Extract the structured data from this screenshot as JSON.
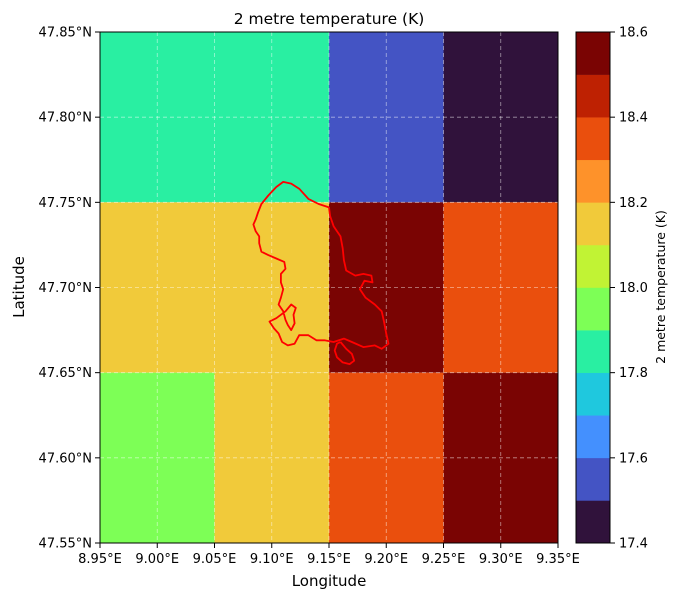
{
  "chart_data": {
    "type": "heatmap",
    "title": "2 metre temperature (K)",
    "xlabel": "Longitude",
    "ylabel": "Latitude",
    "xlim": [
      8.95,
      9.35
    ],
    "ylim": [
      47.55,
      47.85
    ],
    "x_ticks": [
      8.95,
      9.0,
      9.05,
      9.1,
      9.15,
      9.2,
      9.25,
      9.3,
      9.35
    ],
    "x_tick_labels": [
      "8.95°E",
      "9.00°E",
      "9.05°E",
      "9.10°E",
      "9.15°E",
      "9.20°E",
      "9.25°E",
      "9.30°E",
      "9.35°E"
    ],
    "y_ticks": [
      47.55,
      47.6,
      47.65,
      47.7,
      47.75,
      47.8,
      47.85
    ],
    "y_tick_labels": [
      "47.55°N",
      "47.60°N",
      "47.65°N",
      "47.70°N",
      "47.75°N",
      "47.80°N",
      "47.85°N"
    ],
    "grid": true,
    "cells": [
      {
        "lon": [
          8.95,
          9.05
        ],
        "lat": [
          47.75,
          47.85
        ],
        "value": 17.8
      },
      {
        "lon": [
          9.05,
          9.15
        ],
        "lat": [
          47.75,
          47.85
        ],
        "value": 17.8
      },
      {
        "lon": [
          9.15,
          9.25
        ],
        "lat": [
          47.75,
          47.85
        ],
        "value": 17.5
      },
      {
        "lon": [
          9.25,
          9.35
        ],
        "lat": [
          47.75,
          47.85
        ],
        "value": 17.4
      },
      {
        "lon": [
          8.95,
          9.05
        ],
        "lat": [
          47.65,
          47.75
        ],
        "value": 18.2
      },
      {
        "lon": [
          9.05,
          9.15
        ],
        "lat": [
          47.65,
          47.75
        ],
        "value": 18.2
      },
      {
        "lon": [
          9.15,
          9.25
        ],
        "lat": [
          47.65,
          47.75
        ],
        "value": 18.55
      },
      {
        "lon": [
          9.25,
          9.35
        ],
        "lat": [
          47.65,
          47.75
        ],
        "value": 18.35
      },
      {
        "lon": [
          8.95,
          9.05
        ],
        "lat": [
          47.55,
          47.65
        ],
        "value": 17.95
      },
      {
        "lon": [
          9.05,
          9.15
        ],
        "lat": [
          47.55,
          47.65
        ],
        "value": 18.2
      },
      {
        "lon": [
          9.15,
          9.25
        ],
        "lat": [
          47.55,
          47.65
        ],
        "value": 18.35
      },
      {
        "lon": [
          9.25,
          9.35
        ],
        "lat": [
          47.55,
          47.65
        ],
        "value": 18.55
      }
    ],
    "colorbar": {
      "label": "2 metre temperature (K)",
      "range": [
        17.4,
        18.6
      ],
      "ticks": [
        17.4,
        17.6,
        17.8,
        18.0,
        18.2,
        18.4,
        18.6
      ],
      "tick_labels": [
        "17.4",
        "17.6",
        "17.8",
        "18.0",
        "18.2",
        "18.4",
        "18.6"
      ],
      "colors": [
        "#30123b",
        "#4454c4",
        "#4490fe",
        "#1fc8de",
        "#29efa2",
        "#7dff56",
        "#c1f334",
        "#f1ca3a",
        "#fe922a",
        "#ea4f0d",
        "#be2102",
        "#7a0403"
      ]
    },
    "outline": {
      "color": "#ff0000",
      "points": [
        [
          9.15,
          47.747
        ],
        [
          9.141,
          47.749
        ],
        [
          9.132,
          47.752
        ],
        [
          9.124,
          47.758
        ],
        [
          9.117,
          47.761
        ],
        [
          9.11,
          47.762
        ],
        [
          9.104,
          47.759
        ],
        [
          9.097,
          47.754
        ],
        [
          9.091,
          47.749
        ],
        [
          9.088,
          47.744
        ],
        [
          9.086,
          47.74
        ],
        [
          9.084,
          47.737
        ],
        [
          9.086,
          47.733
        ],
        [
          9.089,
          47.73
        ],
        [
          9.089,
          47.726
        ],
        [
          9.091,
          47.721
        ],
        [
          9.097,
          47.719
        ],
        [
          9.104,
          47.717
        ],
        [
          9.111,
          47.715
        ],
        [
          9.112,
          47.711
        ],
        [
          9.108,
          47.708
        ],
        [
          9.108,
          47.703
        ],
        [
          9.11,
          47.699
        ],
        [
          9.108,
          47.694
        ],
        [
          9.106,
          47.69
        ],
        [
          9.11,
          47.686
        ],
        [
          9.112,
          47.681
        ],
        [
          9.114,
          47.678
        ],
        [
          9.117,
          47.675
        ],
        [
          9.12,
          47.679
        ],
        [
          9.119,
          47.684
        ],
        [
          9.121,
          47.688
        ],
        [
          9.117,
          47.69
        ],
        [
          9.112,
          47.686
        ],
        [
          9.104,
          47.682
        ],
        [
          9.098,
          47.68
        ],
        [
          9.102,
          47.676
        ],
        [
          9.106,
          47.673
        ],
        [
          9.109,
          47.668
        ],
        [
          9.114,
          47.666
        ],
        [
          9.12,
          47.667
        ],
        [
          9.124,
          47.672
        ],
        [
          9.132,
          47.672
        ],
        [
          9.139,
          47.669
        ],
        [
          9.146,
          47.669
        ],
        [
          9.154,
          47.668
        ],
        [
          9.163,
          47.67
        ],
        [
          9.17,
          47.668
        ],
        [
          9.18,
          47.665
        ],
        [
          9.19,
          47.666
        ],
        [
          9.196,
          47.664
        ],
        [
          9.202,
          47.667
        ],
        [
          9.2,
          47.673
        ],
        [
          9.198,
          47.68
        ],
        [
          9.196,
          47.686
        ],
        [
          9.19,
          47.69
        ],
        [
          9.182,
          47.694
        ],
        [
          9.177,
          47.699
        ],
        [
          9.181,
          47.704
        ],
        [
          9.188,
          47.703
        ],
        [
          9.187,
          47.707
        ],
        [
          9.18,
          47.708
        ],
        [
          9.173,
          47.707
        ],
        [
          9.165,
          47.71
        ],
        [
          9.163,
          47.716
        ],
        [
          9.162,
          47.723
        ],
        [
          9.16,
          47.73
        ],
        [
          9.154,
          47.736
        ],
        [
          9.151,
          47.742
        ],
        [
          9.15,
          47.747
        ]
      ],
      "island": [
        [
          9.16,
          47.668
        ],
        [
          9.165,
          47.664
        ],
        [
          9.17,
          47.661
        ],
        [
          9.172,
          47.657
        ],
        [
          9.168,
          47.655
        ],
        [
          9.162,
          47.656
        ],
        [
          9.157,
          47.659
        ],
        [
          9.155,
          47.663
        ],
        [
          9.157,
          47.667
        ],
        [
          9.16,
          47.668
        ]
      ]
    }
  }
}
